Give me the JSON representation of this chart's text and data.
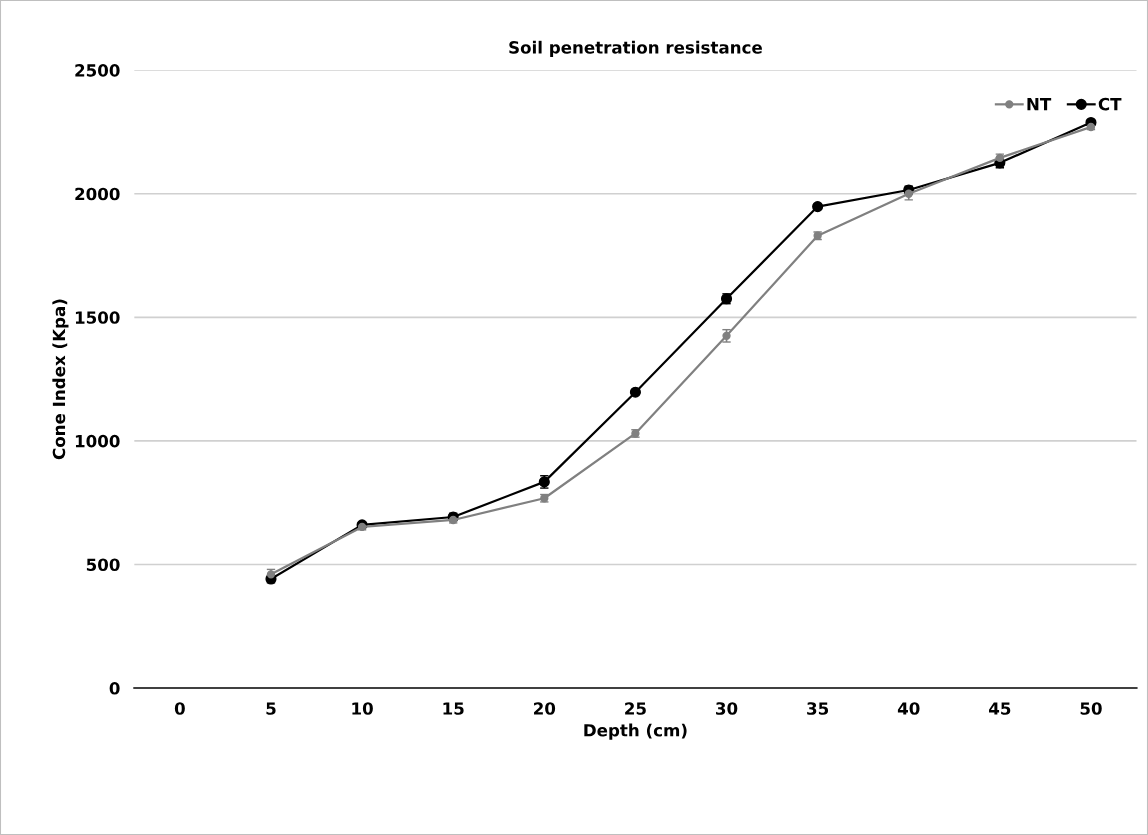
{
  "chart_data": {
    "type": "line",
    "title": "Soil penetration resistance",
    "xlabel": "Depth (cm)",
    "ylabel": "Cone Index (Kpa)",
    "categories": [
      "0",
      "5",
      "10",
      "15",
      "20",
      "25",
      "30",
      "35",
      "40",
      "45",
      "50"
    ],
    "series": [
      {
        "name": "NT",
        "color": "#808080",
        "values": [
          null,
          460,
          652,
          680,
          768,
          1030,
          1425,
          1830,
          2000,
          2145,
          2270
        ],
        "errors": [
          null,
          20,
          12,
          12,
          15,
          15,
          25,
          15,
          25,
          15,
          10
        ]
      },
      {
        "name": "CT",
        "color": "#000000",
        "values": [
          null,
          441,
          660,
          692,
          834,
          1197,
          1575,
          1948,
          2015,
          2125,
          2288
        ],
        "errors": [
          null,
          15,
          10,
          15,
          25,
          10,
          20,
          10,
          15,
          20,
          10
        ]
      }
    ],
    "ylim": [
      0,
      2500
    ],
    "yticks": [
      0,
      500,
      1000,
      1500,
      2000,
      2500
    ],
    "grid": "y",
    "legend": "top right",
    "marker": "circle",
    "line_style": "solid"
  }
}
